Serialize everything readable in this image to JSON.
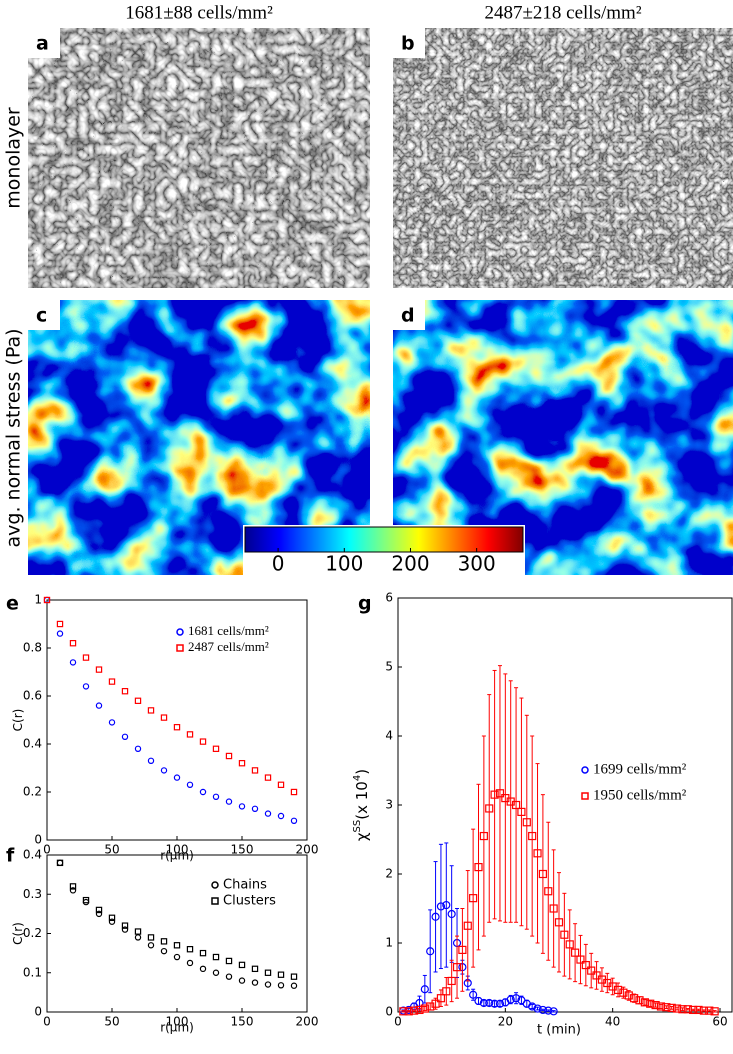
{
  "panels": {
    "titles": [
      "1681±88 cells/mm²",
      "2487±218 cells/mm²"
    ],
    "labels": [
      "a",
      "b",
      "c",
      "d",
      "e",
      "f",
      "g"
    ],
    "row_labels": [
      "monolayer",
      "avg. normal stress (Pa)"
    ]
  },
  "colorbar": {
    "lim": [
      -50,
      370
    ],
    "ticks": [
      0,
      100,
      200,
      300
    ]
  },
  "chart_data": [
    {
      "type": "scatter",
      "xlabel": "r(μm)",
      "ylabel": [
        "C(r)"
      ],
      "xlim": [
        0,
        200
      ],
      "ylim": [
        0,
        1
      ],
      "xticks": [
        0,
        50,
        100,
        150,
        200
      ],
      "yticks": [
        0,
        0.2,
        0.4,
        0.6,
        0.8,
        1
      ],
      "series": [
        {
          "name": "1681 cells/mm²",
          "color": "#0000ff",
          "marker": "o",
          "x": [
            0,
            10,
            20,
            30,
            40,
            50,
            60,
            70,
            80,
            90,
            100,
            110,
            120,
            130,
            140,
            150,
            160,
            170,
            180,
            190
          ],
          "values": [
            1,
            0.86,
            0.74,
            0.64,
            0.56,
            0.49,
            0.43,
            0.38,
            0.33,
            0.29,
            0.26,
            0.23,
            0.2,
            0.18,
            0.16,
            0.14,
            0.13,
            0.11,
            0.1,
            0.08
          ]
        },
        {
          "name": "2487 cells/mm²",
          "color": "#ff0000",
          "marker": "s",
          "x": [
            0,
            10,
            20,
            30,
            40,
            50,
            60,
            70,
            80,
            90,
            100,
            110,
            120,
            130,
            140,
            150,
            160,
            170,
            180,
            190
          ],
          "values": [
            1,
            0.9,
            0.82,
            0.76,
            0.71,
            0.66,
            0.62,
            0.58,
            0.54,
            0.51,
            0.47,
            0.44,
            0.41,
            0.38,
            0.35,
            0.32,
            0.29,
            0.26,
            0.23,
            0.2
          ]
        }
      ]
    },
    {
      "type": "scatter",
      "xlabel": "r(μm)",
      "ylabel": [
        "C(r)"
      ],
      "xlim": [
        0,
        200
      ],
      "ylim": [
        0,
        0.4
      ],
      "xticks": [
        0,
        50,
        100,
        150,
        200
      ],
      "yticks": [
        0,
        0.1,
        0.2,
        0.3,
        0.4
      ],
      "series": [
        {
          "name": "Chains",
          "color": "#000000",
          "marker": "o",
          "x": [
            10,
            20,
            30,
            40,
            50,
            60,
            70,
            80,
            90,
            100,
            110,
            120,
            130,
            140,
            150,
            160,
            170,
            180,
            190
          ],
          "values": [
            0.38,
            0.31,
            0.28,
            0.25,
            0.23,
            0.21,
            0.19,
            0.17,
            0.155,
            0.14,
            0.125,
            0.11,
            0.1,
            0.09,
            0.08,
            0.075,
            0.07,
            0.068,
            0.067
          ]
        },
        {
          "name": "Clusters",
          "color": "#000000",
          "marker": "s",
          "x": [
            10,
            20,
            30,
            40,
            50,
            60,
            70,
            80,
            90,
            100,
            110,
            120,
            130,
            140,
            150,
            160,
            170,
            180,
            190
          ],
          "values": [
            0.38,
            0.32,
            0.285,
            0.26,
            0.24,
            0.22,
            0.205,
            0.19,
            0.18,
            0.17,
            0.16,
            0.15,
            0.14,
            0.13,
            0.12,
            0.11,
            0.1,
            0.095,
            0.09
          ]
        }
      ]
    },
    {
      "type": "scatter",
      "xlabel": "t (min)",
      "ylabel": [
        "χ",
        "SS",
        "(x 10",
        "4",
        ")"
      ],
      "xlim": [
        0,
        60
      ],
      "ylim": [
        0,
        6
      ],
      "xticks": [
        0,
        20,
        40,
        60
      ],
      "yticks": [
        0,
        1,
        2,
        3,
        4,
        5,
        6
      ],
      "series": [
        {
          "name": "1699 cells/mm²",
          "color": "#0000ff",
          "marker": "o",
          "x": [
            1,
            2,
            3,
            4,
            5,
            6,
            7,
            8,
            9,
            10,
            11,
            12,
            13,
            14,
            15,
            16,
            17,
            18,
            19,
            20,
            21,
            22,
            23,
            24,
            25,
            26,
            27,
            28,
            29
          ],
          "values": [
            0.02,
            0.03,
            0.08,
            0.13,
            0.33,
            0.88,
            1.38,
            1.53,
            1.55,
            1.42,
            1.0,
            0.65,
            0.42,
            0.25,
            0.16,
            0.13,
            0.13,
            0.12,
            0.12,
            0.14,
            0.18,
            0.2,
            0.17,
            0.12,
            0.08,
            0.05,
            0.03,
            0.02,
            0.01
          ],
          "errors": [
            0.01,
            0.02,
            0.05,
            0.1,
            0.2,
            0.6,
            0.8,
            0.9,
            0.9,
            0.7,
            0.5,
            0.1,
            0.1,
            0.08,
            0.05,
            0.04,
            0.04,
            0.04,
            0.04,
            0.05,
            0.06,
            0.08,
            0.06,
            0.05,
            0.03,
            0.02,
            0.01,
            0.01,
            0.01
          ]
        },
        {
          "name": "1950 cells/mm²",
          "color": "#ff0000",
          "marker": "s",
          "x": [
            1,
            2,
            3,
            4,
            5,
            6,
            7,
            8,
            9,
            10,
            11,
            12,
            13,
            14,
            15,
            16,
            17,
            18,
            19,
            20,
            21,
            22,
            23,
            24,
            25,
            26,
            27,
            28,
            29,
            30,
            31,
            32,
            33,
            34,
            35,
            36,
            37,
            38,
            39,
            40,
            41,
            42,
            43,
            44,
            45,
            46,
            47,
            48,
            49,
            50,
            51,
            52,
            53,
            54,
            55,
            56,
            57,
            58,
            59
          ],
          "values": [
            0.01,
            0.01,
            0.02,
            0.03,
            0.05,
            0.08,
            0.12,
            0.2,
            0.3,
            0.45,
            0.65,
            0.9,
            1.25,
            1.65,
            2.1,
            2.55,
            2.95,
            3.15,
            3.17,
            3.1,
            3.05,
            3.0,
            2.9,
            2.75,
            2.55,
            2.3,
            2.0,
            1.75,
            1.5,
            1.3,
            1.12,
            0.98,
            0.86,
            0.76,
            0.68,
            0.6,
            0.53,
            0.47,
            0.42,
            0.37,
            0.32,
            0.28,
            0.24,
            0.2,
            0.17,
            0.14,
            0.12,
            0.1,
            0.08,
            0.07,
            0.06,
            0.05,
            0.04,
            0.04,
            0.03,
            0.03,
            0.02,
            0.02,
            0.01
          ],
          "errors": [
            0.01,
            0.01,
            0.01,
            0.02,
            0.03,
            0.05,
            0.08,
            0.12,
            0.2,
            0.3,
            0.45,
            0.6,
            0.8,
            1.0,
            1.2,
            1.45,
            1.65,
            1.8,
            1.85,
            1.8,
            1.75,
            1.7,
            1.65,
            1.55,
            1.45,
            1.3,
            1.15,
            1.0,
            0.85,
            0.72,
            0.6,
            0.5,
            0.42,
            0.35,
            0.3,
            0.25,
            0.2,
            0.17,
            0.14,
            0.12,
            0.1,
            0.08,
            0.07,
            0.06,
            0.05,
            0.04,
            0.04,
            0.03,
            0.03,
            0.02,
            0.02,
            0.02,
            0.02,
            0.01,
            0.01,
            0.01,
            0.01,
            0.01,
            0.01
          ]
        }
      ]
    }
  ]
}
